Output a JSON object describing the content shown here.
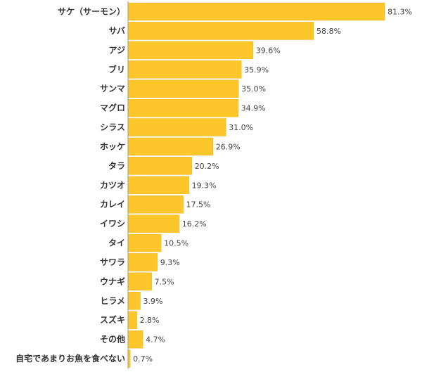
{
  "chart_data": {
    "type": "bar",
    "orientation": "horizontal",
    "categories": [
      "サケ（サーモン）",
      "サバ",
      "アジ",
      "ブリ",
      "サンマ",
      "マグロ",
      "シラス",
      "ホッケ",
      "タラ",
      "カツオ",
      "カレイ",
      "イワシ",
      "タイ",
      "サワラ",
      "ウナギ",
      "ヒラメ",
      "スズキ",
      "その他",
      "自宅であまりお魚を食べない"
    ],
    "values": [
      81.3,
      58.8,
      39.6,
      35.9,
      35.0,
      34.9,
      31.0,
      26.9,
      20.2,
      19.3,
      17.5,
      16.2,
      10.5,
      9.3,
      7.5,
      3.9,
      2.8,
      4.7,
      0.7
    ],
    "value_labels": [
      "81.3%",
      "58.8%",
      "39.6%",
      "35.9%",
      "35.0%",
      "34.9%",
      "31.0%",
      "26.9%",
      "20.2%",
      "19.3%",
      "17.5%",
      "16.2%",
      "10.5%",
      "9.3%",
      "7.5%",
      "3.9%",
      "2.8%",
      "4.7%",
      "0.7%"
    ],
    "unit": "%",
    "xlim": [
      0,
      81.3
    ],
    "grid": false,
    "bar_color": "#FDC72B",
    "bar_edge_color": "#EBB21C",
    "axis_color": "#999999"
  }
}
